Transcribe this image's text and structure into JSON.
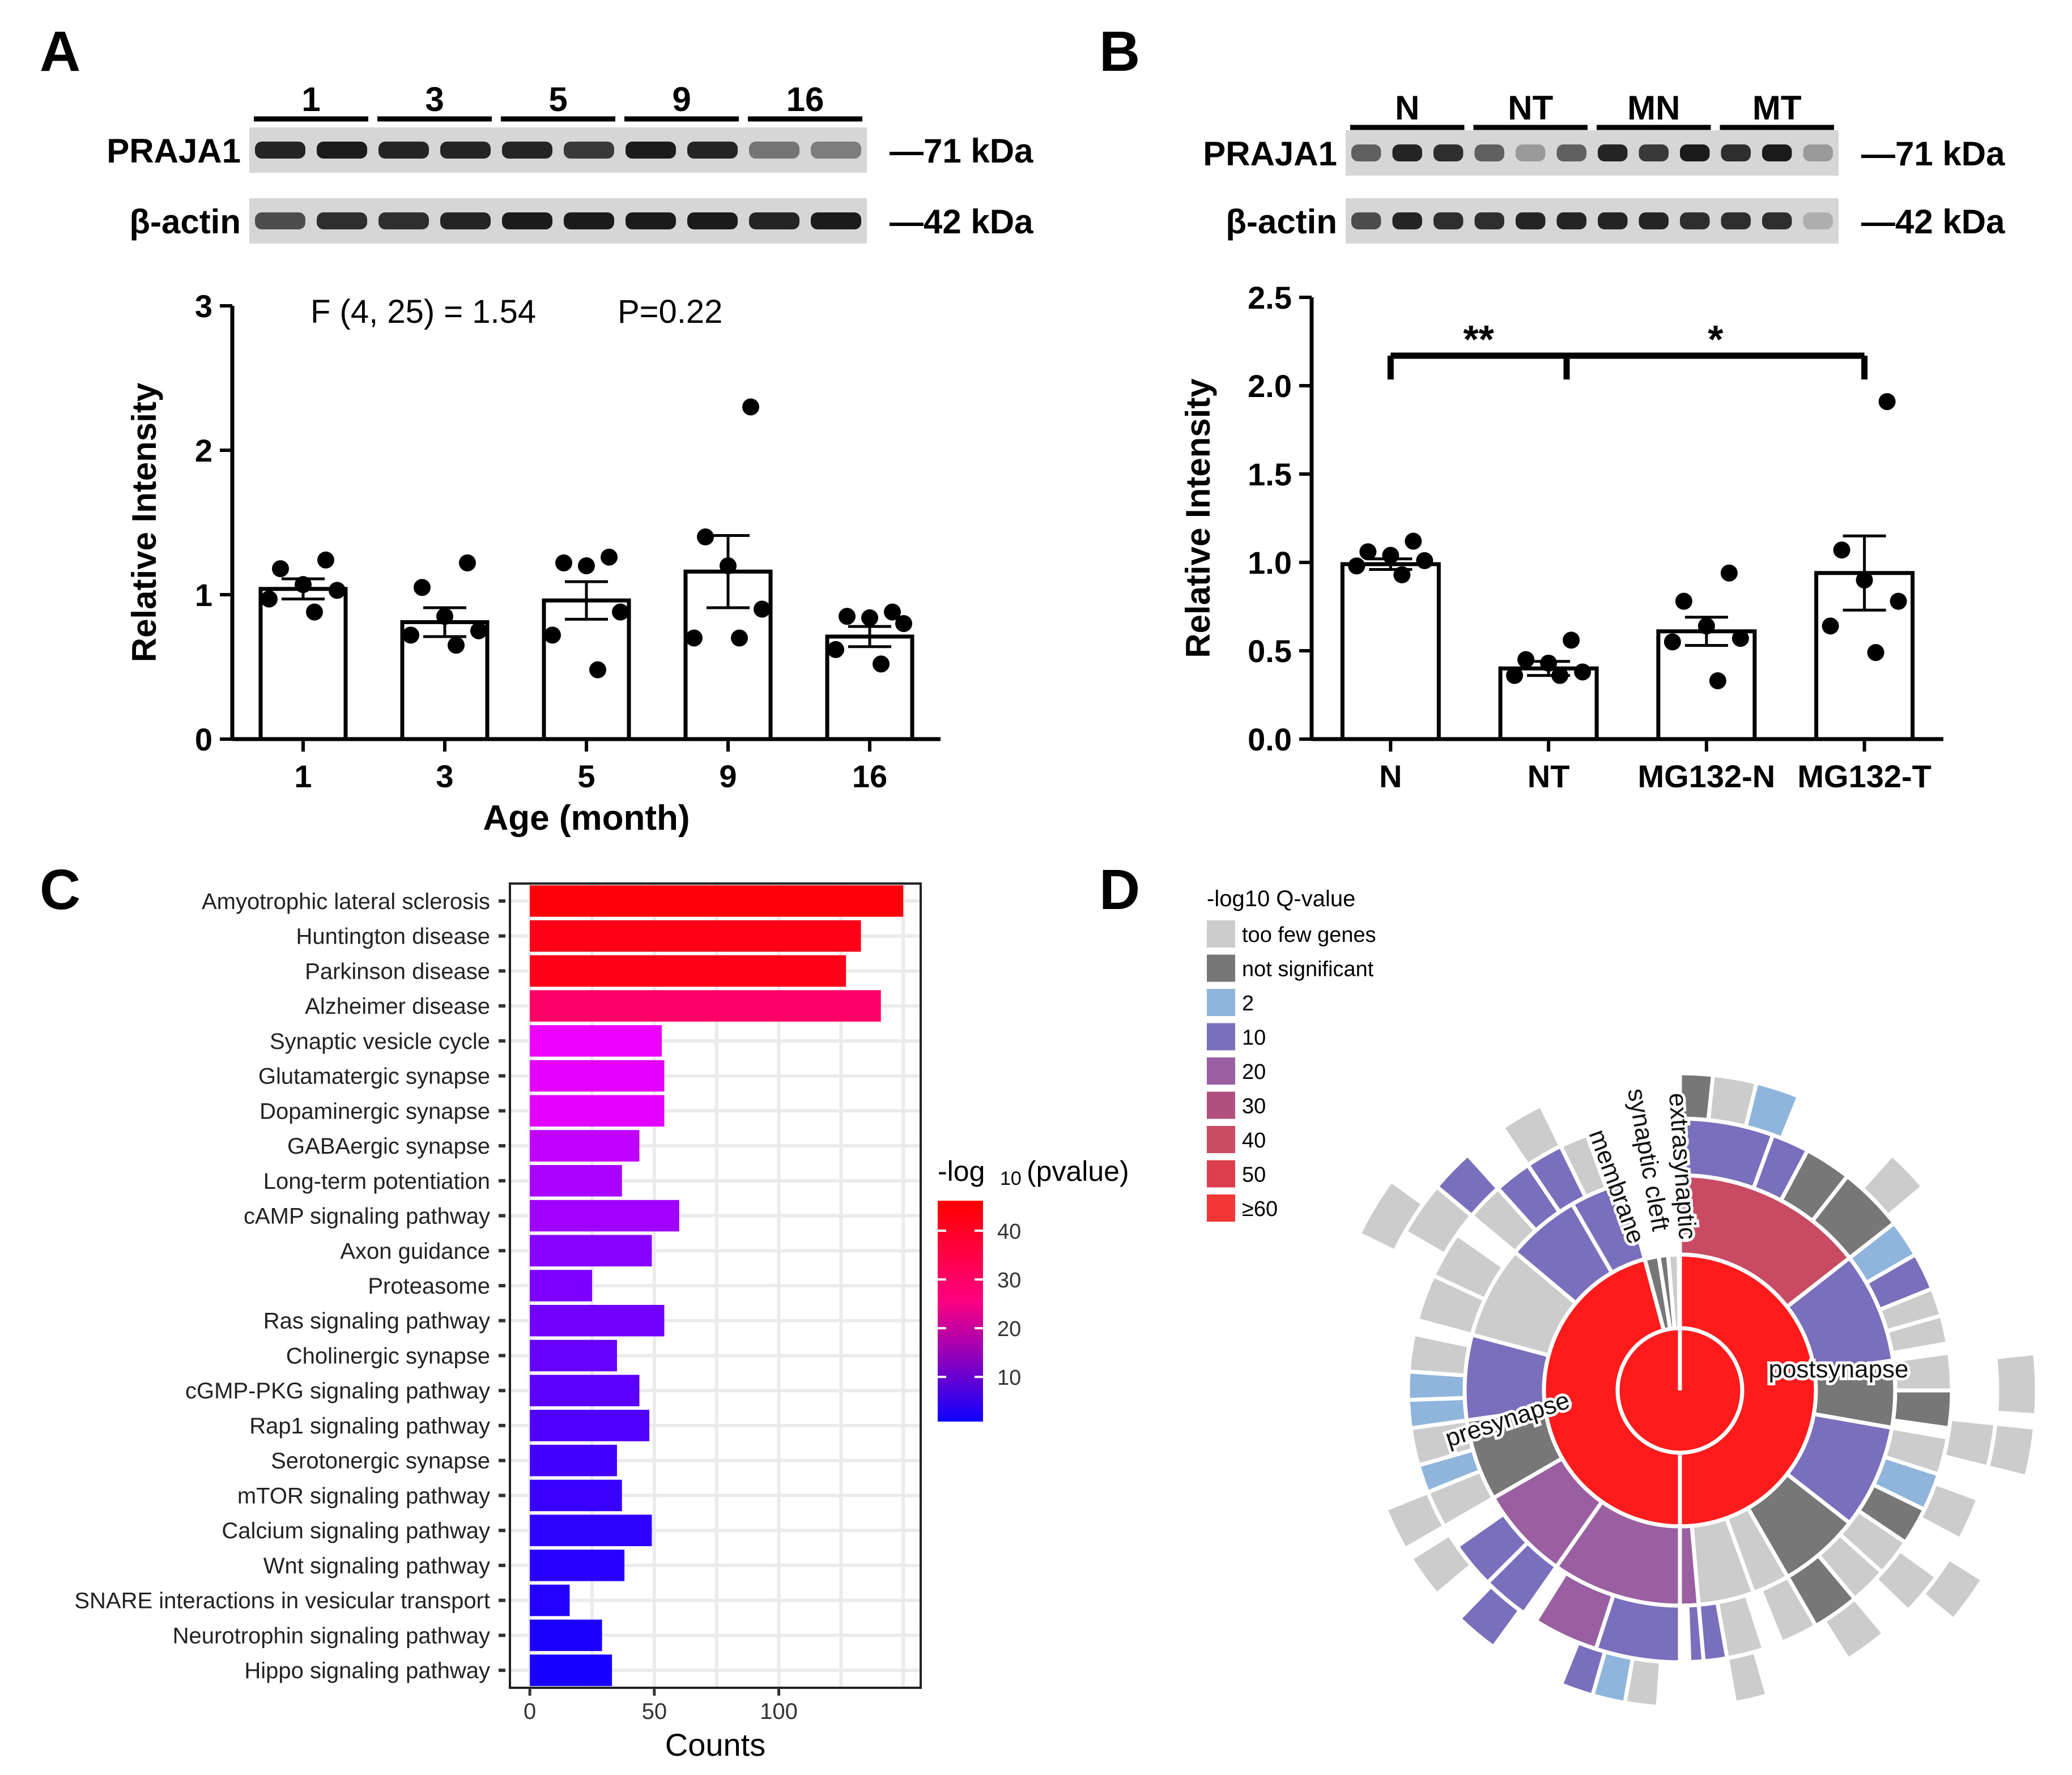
{
  "panelA": {
    "label": "A",
    "blot": {
      "lanes": [
        "1",
        "3",
        "5",
        "9",
        "16"
      ],
      "rows": [
        {
          "name": "PRAJA1",
          "size": "—71 kDa"
        },
        {
          "name": "β-actin",
          "size": "—42 kDa"
        }
      ]
    }
  },
  "panelB": {
    "label": "B",
    "blot": {
      "lanes": [
        "N",
        "NT",
        "MN",
        "MT"
      ],
      "rows": [
        {
          "name": "PRAJA1",
          "size": "—71 kDa"
        },
        {
          "name": "β-actin",
          "size": "—42 kDa"
        }
      ]
    }
  },
  "panelC": {
    "label": "C"
  },
  "panelD": {
    "label": "D"
  },
  "chart_data": [
    {
      "panel": "A",
      "type": "bar",
      "categories": [
        "1",
        "3",
        "5",
        "9",
        "16"
      ],
      "values": [
        1.04,
        0.81,
        0.96,
        1.16,
        0.71
      ],
      "sem": [
        0.07,
        0.1,
        0.13,
        0.25,
        0.07
      ],
      "points": [
        [
          1.24,
          1.18,
          1.07,
          1.03,
          0.97,
          0.88
        ],
        [
          1.22,
          1.05,
          0.85,
          0.75,
          0.72,
          0.65
        ],
        [
          1.26,
          1.22,
          1.2,
          0.88,
          0.72,
          0.48
        ],
        [
          2.3,
          1.4,
          1.2,
          0.9,
          0.7,
          0.7
        ],
        [
          0.88,
          0.85,
          0.84,
          0.8,
          0.62,
          0.52
        ]
      ],
      "xlabel": "Age (month)",
      "ylabel": "Relative Intensity",
      "ylim": [
        0,
        3
      ],
      "yticks": [
        "0",
        "1",
        "2",
        "3"
      ],
      "annotation": "F (4, 25) = 1.54",
      "annotation2": "P=0.22"
    },
    {
      "panel": "B",
      "type": "bar",
      "categories": [
        "N",
        "NT",
        "MG132-N",
        "MG132-T"
      ],
      "values": [
        0.99,
        0.4,
        0.61,
        0.94
      ],
      "sem": [
        0.03,
        0.04,
        0.08,
        0.21
      ],
      "points": [
        [
          1.12,
          1.06,
          1.04,
          1.01,
          0.98,
          0.93
        ],
        [
          0.56,
          0.45,
          0.43,
          0.38,
          0.36,
          0.36
        ],
        [
          0.94,
          0.78,
          0.64,
          0.57,
          0.55,
          0.33
        ],
        [
          1.91,
          1.07,
          0.9,
          0.78,
          0.64,
          0.49
        ]
      ],
      "xlabel": "",
      "ylabel": "Relative Intensity",
      "ylim": [
        0,
        2.5
      ],
      "yticks": [
        "0.0",
        "0.5",
        "1.0",
        "1.5",
        "2.0",
        "2.5"
      ],
      "sig_left": "**",
      "sig_right": "*"
    },
    {
      "panel": "C",
      "type": "bar",
      "orientation": "horizontal",
      "categories": [
        "Amyotrophic lateral sclerosis",
        "Huntington disease",
        "Parkinson disease",
        "Alzheimer disease",
        "Synaptic vesicle cycle",
        "Glutamatergic synapse",
        "Dopaminergic synapse",
        "GABAergic synapse",
        "Long-term potentiation",
        "cAMP signaling pathway",
        "Axon guidance",
        "Proteasome",
        "Ras signaling pathway",
        "Cholinergic synapse",
        "cGMP-PKG signaling pathway",
        "Rap1 signaling pathway",
        "Serotonergic synapse",
        "mTOR signaling pathway",
        "Calcium signaling pathway",
        "Wnt signaling pathway",
        "SNARE interactions in vesicular transport",
        "Neurotrophin signaling pathway",
        "Hippo signaling pathway"
      ],
      "values": [
        150,
        133,
        127,
        141,
        53,
        54,
        54,
        44,
        37,
        60,
        49,
        25,
        54,
        35,
        44,
        48,
        35,
        37,
        49,
        38,
        16,
        29,
        33
      ],
      "pvalue": [
        44,
        43,
        43,
        36,
        21,
        20,
        20,
        17,
        15,
        14,
        12,
        11,
        10,
        9,
        8,
        7,
        6,
        5,
        4,
        3.5,
        3,
        2.5,
        2
      ],
      "xlabel": "Counts",
      "xticks": [
        "0",
        "50",
        "100"
      ],
      "legend_title": "-log",
      "legend_sub": "10",
      "legend_title2": "(pvalue)",
      "legend_ticks": [
        "40",
        "30",
        "20",
        "10"
      ],
      "colors": {
        "high": "#ff0000",
        "mid": "#ff0080",
        "low": "#1000ff"
      }
    },
    {
      "panel": "D",
      "type": "sunburst",
      "legend_title": "-log10 Q-value",
      "legend": [
        {
          "label": "too few genes",
          "color": "#cccccc"
        },
        {
          "label": "not significant",
          "color": "#777777"
        },
        {
          "label": "2",
          "color": "#8fb5dc"
        },
        {
          "label": "10",
          "color": "#7a6fbd"
        },
        {
          "label": "20",
          "color": "#9a5fa0"
        },
        {
          "label": "30",
          "color": "#b0507e"
        },
        {
          "label": "40",
          "color": "#c94a63"
        },
        {
          "label": "50",
          "color": "#dd3e4c"
        },
        {
          "label": "≥60",
          "color": "#f23535"
        }
      ],
      "ring_labels": [
        "presynapse",
        "postsynapse",
        "membrane",
        "synaptic cleft",
        "extrasynaptic"
      ]
    }
  ]
}
